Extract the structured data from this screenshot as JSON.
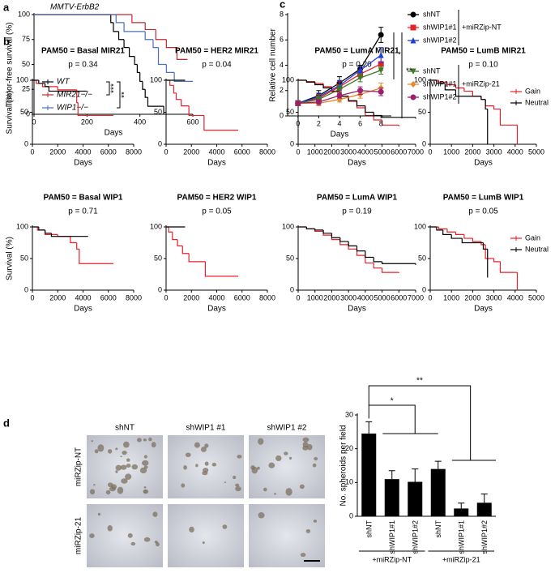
{
  "chart_data": [
    {
      "type": "survival",
      "panel": "a",
      "title": "MMTV-ErbB2",
      "xlabel": "Days",
      "ylabel": "Tumor-free survival (%)",
      "xlim": [
        0,
        600
      ],
      "xticks": [
        0,
        200,
        400,
        600
      ],
      "ylim": [
        0,
        100
      ],
      "yticks": [
        0,
        25,
        50,
        75,
        100
      ],
      "legend": "lower left",
      "significance": [
        "***",
        "**"
      ],
      "series": [
        {
          "name": "WT",
          "color": "#000000",
          "x": [
            0,
            290,
            300,
            320,
            340,
            360,
            380,
            390,
            400,
            410,
            420,
            430,
            490
          ],
          "values": [
            100,
            92,
            83,
            75,
            67,
            58,
            50,
            42,
            33,
            25,
            17,
            8,
            0
          ]
        },
        {
          "name": "MIR21−/−",
          "color": "#c0282d",
          "x": [
            0,
            370,
            420,
            460,
            500,
            540,
            580
          ],
          "values": [
            100,
            92,
            85,
            75,
            67,
            55,
            55
          ]
        },
        {
          "name": "WIP1−/−",
          "color": "#4a6fc0",
          "x": [
            0,
            310,
            340,
            420,
            450,
            470,
            500,
            530,
            600
          ],
          "values": [
            100,
            92,
            83,
            75,
            67,
            50,
            42,
            33,
            33
          ]
        }
      ]
    },
    {
      "type": "survival",
      "panel": "b",
      "title": "PAM50 = Basal MIR21",
      "annotation": "p = 0.34",
      "xlabel": "Days",
      "ylabel": "Survival (%)",
      "xlim": [
        0,
        8000
      ],
      "xticks": [
        0,
        2000,
        4000,
        6000,
        8000
      ],
      "ylim": [
        0,
        100
      ],
      "yticks": [
        0,
        50,
        100
      ],
      "series": [
        {
          "color": "#e8202a",
          "x": [
            0,
            300,
            800,
            2000,
            3500,
            3600,
            6400
          ],
          "values": [
            100,
            95,
            90,
            85,
            65,
            45,
            45
          ]
        },
        {
          "color": "#000000",
          "x": [
            0,
            500,
            1000,
            1300,
            4300
          ],
          "values": [
            100,
            95,
            90,
            83,
            83
          ]
        }
      ]
    },
    {
      "type": "survival",
      "title": "PAM50 = HER2 MIR21",
      "annotation": "p = 0.04",
      "xlabel": "Days",
      "xlim": [
        0,
        8000
      ],
      "xticks": [
        0,
        2000,
        4000,
        6000,
        8000
      ],
      "ylim": [
        0,
        100
      ],
      "yticks": [
        0,
        50,
        100
      ],
      "series": [
        {
          "color": "#e8202a",
          "x": [
            0,
            300,
            600,
            800,
            1200,
            1800,
            3000,
            5700
          ],
          "values": [
            100,
            92,
            80,
            70,
            60,
            45,
            22,
            22
          ]
        },
        {
          "color": "#000000",
          "x": [
            0,
            1500
          ],
          "values": [
            100,
            100
          ]
        }
      ]
    },
    {
      "type": "survival",
      "title": "PAM50 = LumA MIR21",
      "annotation": "p = 0.20",
      "xlabel": "Days",
      "xlim": [
        0,
        7000
      ],
      "xticks": [
        0,
        1000,
        2000,
        3000,
        4000,
        5000,
        6000,
        7000
      ],
      "ylim": [
        0,
        100
      ],
      "yticks": [
        0,
        50,
        100
      ],
      "series": [
        {
          "color": "#e8202a",
          "x": [
            0,
            500,
            1000,
            1500,
            2000,
            2500,
            3000,
            3500,
            4000,
            4500,
            5000,
            6000
          ],
          "values": [
            100,
            98,
            95,
            90,
            82,
            75,
            67,
            57,
            45,
            38,
            30,
            28
          ]
        },
        {
          "color": "#000000",
          "x": [
            0,
            500,
            1000,
            1500,
            2000,
            2500,
            3000,
            3500,
            4000,
            4500,
            5000,
            7000
          ],
          "values": [
            100,
            97,
            93,
            88,
            83,
            75,
            68,
            60,
            50,
            45,
            42,
            40
          ]
        }
      ]
    },
    {
      "type": "survival",
      "title": "PAM50 = LumB MIR21",
      "annotation": "p = 0.10",
      "xlabel": "Days",
      "legend": "upper right",
      "xlim": [
        0,
        5000
      ],
      "xticks": [
        0,
        1000,
        2000,
        3000,
        4000,
        5000
      ],
      "ylim": [
        0,
        100
      ],
      "yticks": [
        0,
        50,
        100
      ],
      "series": [
        {
          "name": "Gain",
          "color": "#e8202a",
          "x": [
            0,
            400,
            800,
            1200,
            1600,
            2000,
            2400,
            2600,
            3000,
            3300,
            4000,
            4100
          ],
          "values": [
            100,
            97,
            93,
            88,
            83,
            75,
            70,
            60,
            55,
            30,
            30,
            0
          ]
        },
        {
          "name": "Neutral",
          "color": "#000000",
          "x": [
            0,
            300,
            700,
            1200,
            2000,
            2400,
            2600,
            2700
          ],
          "values": [
            100,
            95,
            85,
            75,
            75,
            70,
            55,
            0
          ]
        }
      ]
    },
    {
      "type": "survival",
      "title": "PAM50 = Basal WIP1",
      "annotation": "p = 0.71",
      "xlabel": "Days",
      "ylabel": "Survival (%)",
      "xlim": [
        0,
        8000
      ],
      "xticks": [
        0,
        2000,
        4000,
        6000,
        8000
      ],
      "ylim": [
        0,
        100
      ],
      "yticks": [
        0,
        50,
        100
      ],
      "series": [
        {
          "color": "#e8202a",
          "x": [
            0,
            400,
            1000,
            2000,
            3000,
            3500,
            3700,
            6400
          ],
          "values": [
            100,
            95,
            88,
            85,
            75,
            65,
            42,
            42
          ]
        },
        {
          "color": "#000000",
          "x": [
            0,
            500,
            1000,
            1500,
            4400
          ],
          "values": [
            100,
            95,
            90,
            85,
            85
          ]
        }
      ]
    },
    {
      "type": "survival",
      "title": "PAM50 = HER2 WIP1",
      "annotation": "p = 0.05",
      "xlabel": "Days",
      "xlim": [
        0,
        8000
      ],
      "xticks": [
        0,
        2000,
        4000,
        6000,
        8000
      ],
      "ylim": [
        0,
        100
      ],
      "yticks": [
        0,
        50,
        100
      ],
      "series": [
        {
          "color": "#e8202a",
          "x": [
            0,
            200,
            500,
            900,
            1300,
            1800,
            3100,
            5700
          ],
          "values": [
            100,
            92,
            80,
            70,
            58,
            45,
            22,
            22
          ]
        },
        {
          "color": "#000000",
          "x": [
            0,
            1500
          ],
          "values": [
            100,
            100
          ]
        }
      ]
    },
    {
      "type": "survival",
      "title": "PAM50 = LumA WIP1",
      "annotation": "p = 0.19",
      "xlabel": "Days",
      "xlim": [
        0,
        7000
      ],
      "xticks": [
        0,
        1000,
        2000,
        3000,
        4000,
        5000,
        6000,
        7000
      ],
      "ylim": [
        0,
        100
      ],
      "yticks": [
        0,
        50,
        100
      ],
      "series": [
        {
          "color": "#e8202a",
          "x": [
            0,
            500,
            1000,
            1500,
            2000,
            2500,
            3000,
            3500,
            4000,
            4500,
            5000,
            6000
          ],
          "values": [
            100,
            97,
            93,
            87,
            80,
            72,
            65,
            55,
            43,
            35,
            28,
            27
          ]
        },
        {
          "color": "#000000",
          "x": [
            0,
            500,
            1000,
            1500,
            2000,
            2500,
            3000,
            3500,
            4000,
            4500,
            5000,
            7000
          ],
          "values": [
            100,
            97,
            95,
            90,
            83,
            77,
            70,
            62,
            52,
            45,
            42,
            40
          ]
        }
      ]
    },
    {
      "type": "survival",
      "title": "PAM50 = LumB WIP1",
      "annotation": "p = 0.05",
      "xlabel": "Days",
      "legend": "upper right",
      "xlim": [
        0,
        5000
      ],
      "xticks": [
        0,
        1000,
        2000,
        3000,
        4000,
        5000
      ],
      "ylim": [
        0,
        100
      ],
      "yticks": [
        0,
        50,
        100
      ],
      "series": [
        {
          "name": "Gain",
          "color": "#e8202a",
          "x": [
            0,
            400,
            800,
            1200,
            1600,
            2000,
            2400,
            2600,
            3000,
            3300,
            4000,
            4100
          ],
          "values": [
            100,
            97,
            92,
            88,
            82,
            77,
            72,
            50,
            45,
            28,
            28,
            0
          ]
        },
        {
          "name": "Neutral",
          "color": "#000000",
          "x": [
            0,
            300,
            600,
            1000,
            1500,
            2200,
            2500,
            2700
          ],
          "values": [
            100,
            95,
            88,
            82,
            75,
            75,
            65,
            20
          ]
        }
      ]
    },
    {
      "type": "line",
      "panel": "c",
      "xlabel": "Days",
      "ylabel": "Relative cell number",
      "x": [
        0,
        2,
        4,
        6,
        8
      ],
      "xlim": [
        -1,
        9
      ],
      "xticks": [
        0,
        2,
        4,
        6,
        8
      ],
      "ylim": [
        0,
        8
      ],
      "yticks": [
        0,
        2,
        4,
        6,
        8
      ],
      "groups": [
        "+miRZip-NT",
        "+miRZip-21"
      ],
      "significance": [
        "*",
        "**"
      ],
      "series": [
        {
          "name": "shNT",
          "color": "#000000",
          "marker": "circle",
          "values": [
            1,
            1.6,
            2.6,
            3.7,
            6.4
          ],
          "errors": [
            0.2,
            0.4,
            0.5,
            0.3,
            0.6
          ]
        },
        {
          "name": "shWIP1#1",
          "color": "#e8202a",
          "marker": "square",
          "values": [
            1,
            1.4,
            2.3,
            3.3,
            4.1
          ],
          "errors": [
            0.2,
            0.3,
            0.4,
            0.3,
            0.5
          ]
        },
        {
          "name": "shWIP1#2",
          "color": "#1f3fd8",
          "marker": "triangle",
          "values": [
            1,
            1.5,
            2.4,
            3.6,
            4.8
          ],
          "errors": [
            0.2,
            0.3,
            0.4,
            0.3,
            0.6
          ]
        },
        {
          "name": "shNT",
          "color": "#3a7a23",
          "marker": "triangle-down",
          "values": [
            1,
            1.3,
            2.1,
            3.0,
            3.6
          ],
          "errors": [
            0.2,
            0.3,
            0.3,
            0.3,
            0.3
          ]
        },
        {
          "name": "shWIP1#1",
          "color": "#e8892b",
          "marker": "diamond",
          "values": [
            1,
            1.0,
            1.3,
            1.7,
            2.2
          ],
          "errors": [
            0.1,
            0.2,
            0.2,
            0.3,
            0.4
          ]
        },
        {
          "name": "shWIP1#2",
          "color": "#9c1f6e",
          "marker": "circle",
          "values": [
            1,
            1.1,
            1.6,
            2.0,
            1.9
          ],
          "errors": [
            0.1,
            0.2,
            0.2,
            0.3,
            0.3
          ]
        }
      ]
    },
    {
      "type": "bar",
      "panel": "d",
      "ylabel": "No. spheroids per field",
      "categories": [
        "shNT",
        "shWIP1#1",
        "shWIP1#2",
        "shNT",
        "shWIP1#1",
        "shWIP1#2"
      ],
      "values": [
        24.5,
        11,
        10.2,
        14,
        2.3,
        4
      ],
      "errors": [
        3.5,
        2.5,
        3.8,
        2.3,
        1.6,
        2.6
      ],
      "color": "#000000",
      "ylim": [
        0,
        30
      ],
      "yticks": [
        0,
        10,
        20,
        30
      ],
      "groups": [
        "+miRZip-NT",
        "+miRZip-21"
      ],
      "significance": [
        "*",
        "**"
      ]
    }
  ],
  "micrographs": {
    "columns": [
      "shNT",
      "shWIP1 #1",
      "shWIP1 #2"
    ],
    "rows": [
      "miRZip-NT",
      "miRZip-21"
    ]
  }
}
